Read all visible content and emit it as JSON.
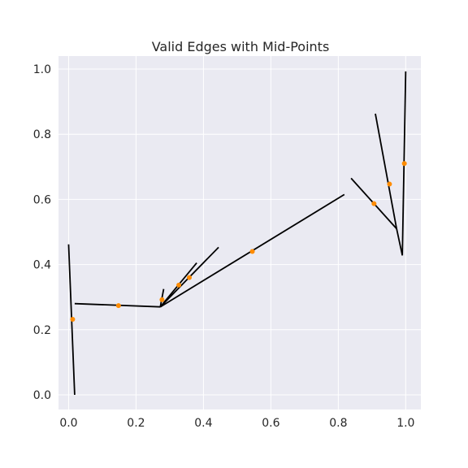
{
  "chart_data": {
    "type": "line",
    "title": "Valid Edges with Mid-Points",
    "xlabel": "",
    "ylabel": "",
    "xlim": [
      -0.03,
      1.045
    ],
    "ylim": [
      -0.045,
      1.04
    ],
    "xticks": [
      0.0,
      0.2,
      0.4,
      0.6,
      0.8,
      1.0
    ],
    "yticks": [
      0.0,
      0.2,
      0.4,
      0.6,
      0.8,
      1.0
    ],
    "xtick_labels": [
      "0.0",
      "0.2",
      "0.4",
      "0.6",
      "0.8",
      "1.0"
    ],
    "ytick_labels": [
      "0.0",
      "0.2",
      "0.4",
      "0.6",
      "0.8",
      "1.0"
    ],
    "grid": true,
    "edge_color": "#000000",
    "midpoint_color": "#FF8C00",
    "background_color": "#EAEAF2",
    "grid_color": "#FFFFFF",
    "edges": [
      {
        "x": [
          0.0,
          0.018
        ],
        "y": [
          0.462,
          0.0
        ]
      },
      {
        "x": [
          0.018,
          0.272
        ],
        "y": [
          0.28,
          0.27
        ]
      },
      {
        "x": [
          0.272,
          0.282
        ],
        "y": [
          0.27,
          0.325
        ]
      },
      {
        "x": [
          0.272,
          0.38
        ],
        "y": [
          0.27,
          0.405
        ]
      },
      {
        "x": [
          0.272,
          0.445
        ],
        "y": [
          0.27,
          0.453
        ]
      },
      {
        "x": [
          0.272,
          0.818
        ],
        "y": [
          0.27,
          0.615
        ]
      },
      {
        "x": [
          0.838,
          0.973
        ],
        "y": [
          0.665,
          0.51
        ]
      },
      {
        "x": [
          0.91,
          0.973
        ],
        "y": [
          0.863,
          0.51
        ]
      },
      {
        "x": [
          0.973,
          0.99
        ],
        "y": [
          0.51,
          0.428
        ]
      },
      {
        "x": [
          0.99,
          1.0
        ],
        "y": [
          0.428,
          0.993
        ]
      }
    ],
    "midpoints": [
      {
        "x": 0.012,
        "y": 0.232
      },
      {
        "x": 0.148,
        "y": 0.274
      },
      {
        "x": 0.277,
        "y": 0.292
      },
      {
        "x": 0.327,
        "y": 0.337
      },
      {
        "x": 0.358,
        "y": 0.36
      },
      {
        "x": 0.545,
        "y": 0.44
      },
      {
        "x": 0.906,
        "y": 0.587
      },
      {
        "x": 0.952,
        "y": 0.647
      },
      {
        "x": 0.996,
        "y": 0.71
      }
    ]
  }
}
